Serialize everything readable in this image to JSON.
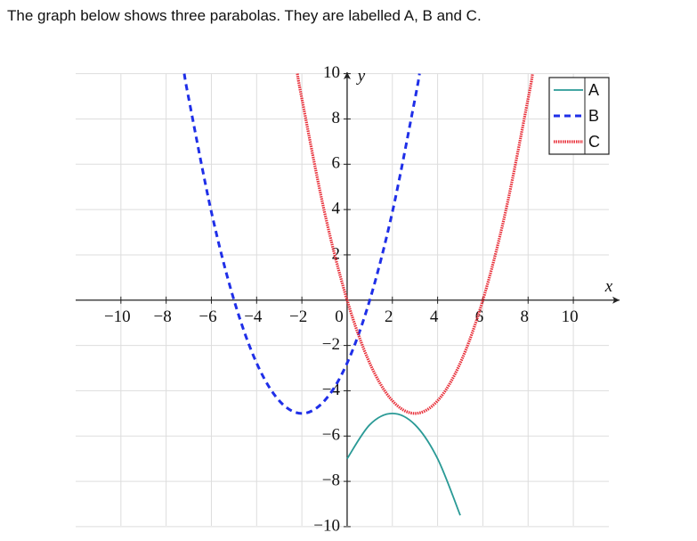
{
  "intro": "The graph below shows three parabolas. They are labelled A, B and C.",
  "chart_data": {
    "type": "line",
    "x_label": "x",
    "y_label": "y",
    "xlim": [
      -12,
      12.2
    ],
    "ylim": [
      -10.2,
      10.3
    ],
    "xticks": [
      {
        "value": -10,
        "label": "−10"
      },
      {
        "value": -8,
        "label": "−8"
      },
      {
        "value": -6,
        "label": "−6"
      },
      {
        "value": -4,
        "label": "−4"
      },
      {
        "value": -2,
        "label": "−2"
      },
      0,
      2,
      4,
      6,
      8,
      10
    ],
    "yticks": [
      {
        "value": -10,
        "label": "−10"
      },
      {
        "value": -8,
        "label": "−8"
      },
      {
        "value": -6,
        "label": "−6"
      },
      {
        "value": -4,
        "label": "−4"
      },
      {
        "value": -2,
        "label": "−2"
      },
      2,
      4,
      6,
      8,
      10
    ],
    "grid": true,
    "legend": "top-right",
    "series": [
      {
        "name": "A",
        "color": "#2a9a96",
        "dash": "solid",
        "x": [
          0,
          1,
          2,
          3,
          4,
          5
        ],
        "values": [
          -7,
          -5.5,
          -5,
          -5.5,
          -7,
          -9.5
        ]
      },
      {
        "name": "B",
        "color": "#1f2fe8",
        "dash": "dashed",
        "x": [
          -7.2,
          -7,
          -6,
          -5,
          -4,
          -3,
          -2,
          -1,
          0,
          1,
          2,
          3,
          3.2
        ],
        "values": [
          10,
          8.89,
          3.89,
          0,
          -2.78,
          -4.44,
          -5,
          -4.44,
          -2.78,
          0,
          3.89,
          8.89,
          10
        ]
      },
      {
        "name": "C",
        "color": "#e8303a",
        "dash": "dotted",
        "x": [
          -2.2,
          -2,
          -1,
          0,
          1,
          2,
          3,
          4,
          5,
          6,
          7,
          8,
          8.2
        ],
        "values": [
          10,
          8.89,
          3.89,
          0,
          -2.78,
          -4.44,
          -5,
          -4.44,
          -2.78,
          0,
          3.89,
          8.89,
          10
        ]
      }
    ]
  }
}
